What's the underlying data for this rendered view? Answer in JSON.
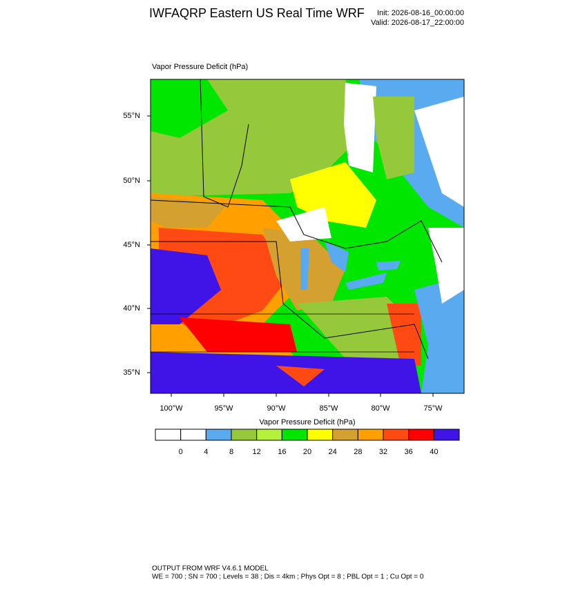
{
  "header": {
    "title": "IWFAQRP Eastern US Real Time WRF",
    "init": "Init: 2026-08-16_00:00:00",
    "valid": "Valid: 2026-08-17_22:00:00"
  },
  "map": {
    "label": "Vapor Pressure Deficit   (hPa)",
    "lat_labels": [
      "55°N",
      "50°N",
      "45°N",
      "40°N",
      "35°N"
    ],
    "lon_labels": [
      "100°W",
      "95°W",
      "90°W",
      "85°W",
      "80°W",
      "75°W"
    ]
  },
  "colorbar": {
    "title": "Vapor Pressure Deficit  (hPa)",
    "levels": [
      0,
      4,
      8,
      12,
      16,
      20,
      24,
      28,
      32,
      36,
      40
    ],
    "colors": [
      "#ffffff",
      "#ffffff",
      "#5aaaf0",
      "#96c83c",
      "#b4f03c",
      "#00e600",
      "#ffff00",
      "#d4a030",
      "#ffa000",
      "#ff4a14",
      "#ff0000",
      "#4014e6"
    ]
  },
  "footer": {
    "line1": "OUTPUT FROM WRF V4.6.1 MODEL",
    "line2": "WE = 700 ; SN = 700 ; Levels = 38 ; Dis = 4km ; Phys Opt = 8 ; PBL Opt = 1 ; Cu Opt = 0"
  }
}
